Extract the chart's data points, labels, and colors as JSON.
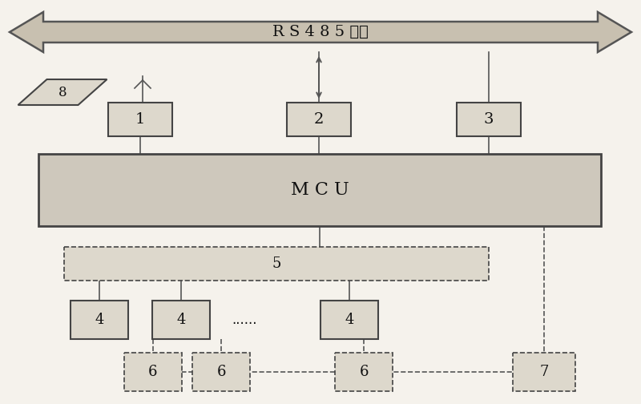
{
  "bg_color": "#f5f2ec",
  "arrow_fill": "#c8c0b0",
  "arrow_edge": "#555555",
  "arrow_text": "R S 4 8 5 总线",
  "box_fill": "#ddd8cc",
  "box_edge": "#444444",
  "mcu_fill": "#cec8bc",
  "dashed_fill": "#ddd8cc",
  "line_color": "#555555",
  "text_color": "#111111",
  "white_bg": "#f5f2ec"
}
